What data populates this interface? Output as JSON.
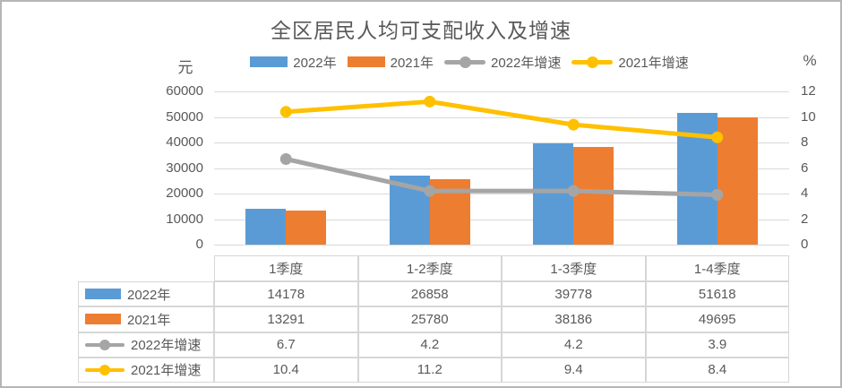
{
  "title": "全区居民人均可支配收入及增速",
  "chart_data": {
    "type": "combo-bar-line",
    "title": "全区居民人均可支配收入及增速",
    "categories": [
      "1季度",
      "1-2季度",
      "1-3季度",
      "1-4季度"
    ],
    "series": [
      {
        "name": "2022年",
        "kind": "bar",
        "axis": "left",
        "color": "#5B9BD5",
        "values": [
          14178,
          26858,
          39778,
          51618
        ]
      },
      {
        "name": "2021年",
        "kind": "bar",
        "axis": "left",
        "color": "#ED7D31",
        "values": [
          13291,
          25780,
          38186,
          49695
        ]
      },
      {
        "name": "2022年增速",
        "kind": "line",
        "axis": "right",
        "color": "#A5A5A5",
        "values": [
          6.7,
          4.2,
          4.2,
          3.9
        ]
      },
      {
        "name": "2021年增速",
        "kind": "line",
        "axis": "right",
        "color": "#FFC000",
        "values": [
          10.4,
          11.2,
          9.4,
          8.4
        ]
      }
    ],
    "left_axis": {
      "label": "元",
      "min": 0,
      "max": 60000,
      "step": 10000,
      "ticks": [
        "60000",
        "50000",
        "40000",
        "30000",
        "20000",
        "10000",
        "0"
      ]
    },
    "right_axis": {
      "label": "%",
      "min": 0,
      "max": 12,
      "step": 2,
      "ticks": [
        "12",
        "10",
        "8",
        "6",
        "4",
        "2",
        "0"
      ]
    },
    "grid": true,
    "legend_position": "top",
    "data_table": true
  },
  "colors": {
    "grid": "#D9D9D9",
    "text": "#595959",
    "table_border": "#D6D6D6",
    "frame_border": "#B6B6B6"
  }
}
